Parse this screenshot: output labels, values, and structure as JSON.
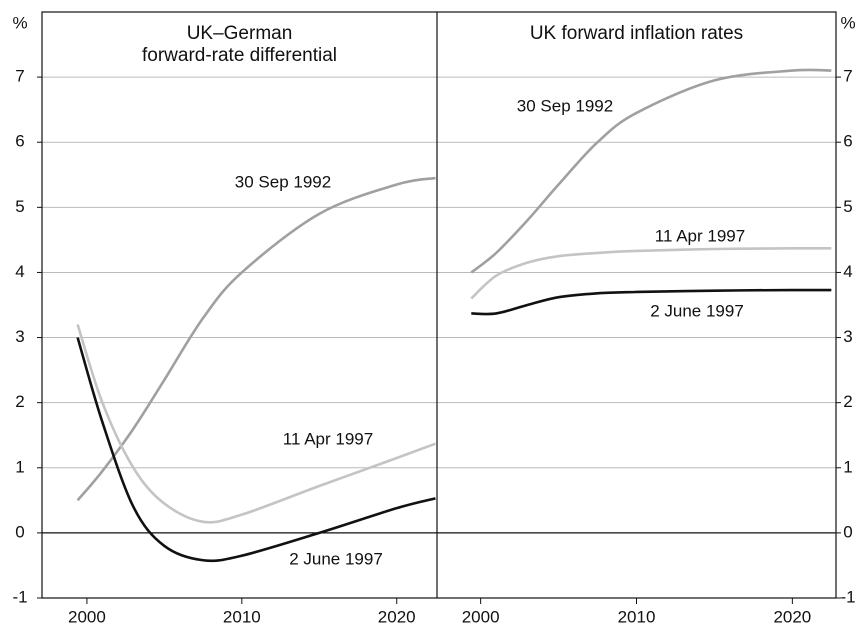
{
  "chart_data": [
    {
      "type": "line",
      "title": [
        "UK–German",
        "forward-rate differential"
      ],
      "y_label": "%",
      "x": [
        1999.4,
        2001,
        2003,
        2005,
        2007.5,
        2010,
        2015,
        2020,
        2022.5
      ],
      "xlim": [
        1997.1,
        2022.6
      ],
      "xticks": [
        2000,
        2010,
        2020
      ],
      "ylim": [
        -1,
        8
      ],
      "yticks": [
        -1,
        0,
        1,
        2,
        3,
        4,
        5,
        6,
        7
      ],
      "grid": true,
      "series": [
        {
          "name": "30 Sep 1992",
          "color": "#a0a0a0",
          "values": [
            0.5,
            0.95,
            1.6,
            2.35,
            3.3,
            4.0,
            4.9,
            5.35,
            5.45
          ]
        },
        {
          "name": "11 Apr 1997",
          "color": "#c4c4c4",
          "values": [
            3.2,
            2.0,
            1.0,
            0.45,
            0.17,
            0.28,
            0.72,
            1.15,
            1.37
          ]
        },
        {
          "name": "2 June 1997",
          "color": "#111111",
          "values": [
            3.0,
            1.7,
            0.4,
            -0.2,
            -0.42,
            -0.35,
            0.0,
            0.38,
            0.53
          ]
        }
      ]
    },
    {
      "type": "line",
      "title": [
        "UK forward inflation rates"
      ],
      "y_label": "%",
      "x": [
        1999.4,
        2001,
        2003,
        2005,
        2007.5,
        2010,
        2015,
        2020,
        2022.5
      ],
      "xlim": [
        1997.2,
        2022.8
      ],
      "xticks": [
        2000,
        2010,
        2020
      ],
      "ylim": [
        -1,
        8
      ],
      "yticks": [
        -1,
        0,
        1,
        2,
        3,
        4,
        5,
        6,
        7
      ],
      "grid": true,
      "series": [
        {
          "name": "30 Sep 1992",
          "color": "#a0a0a0",
          "values": [
            4.0,
            4.3,
            4.8,
            5.35,
            6.0,
            6.45,
            6.95,
            7.1,
            7.1
          ]
        },
        {
          "name": "11 Apr 1997",
          "color": "#c4c4c4",
          "values": [
            3.6,
            3.95,
            4.15,
            4.25,
            4.3,
            4.33,
            4.36,
            4.37,
            4.37
          ]
        },
        {
          "name": "2 June 1997",
          "color": "#111111",
          "values": [
            3.37,
            3.37,
            3.5,
            3.62,
            3.68,
            3.7,
            3.72,
            3.73,
            3.73
          ]
        }
      ]
    }
  ]
}
